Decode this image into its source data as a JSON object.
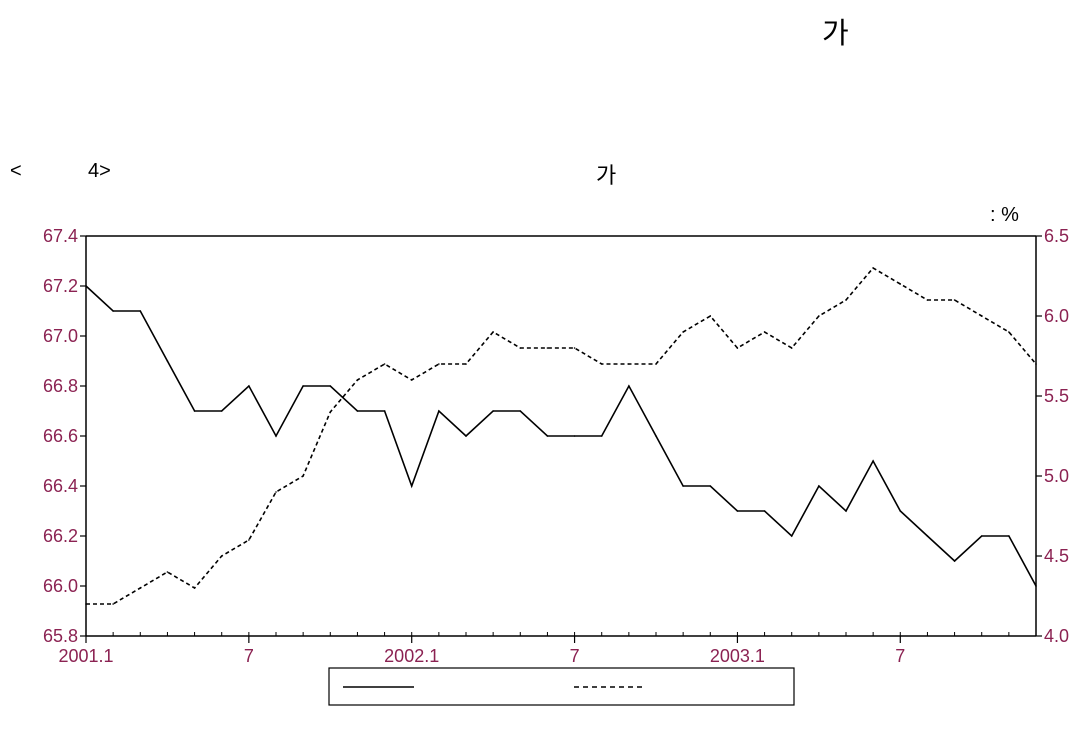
{
  "heading": "가",
  "caption": {
    "left": "<",
    "num": "4>",
    "mid": "가"
  },
  "unit": ": %",
  "colors": {
    "tick_label": "#8b2252",
    "line": "#000000"
  },
  "chart_data": {
    "type": "line",
    "x": [
      "2001.1",
      "2001.2",
      "2001.3",
      "2001.4",
      "2001.5",
      "2001.6",
      "2001.7",
      "2001.8",
      "2001.9",
      "2001.10",
      "2001.11",
      "2001.12",
      "2002.1",
      "2002.2",
      "2002.3",
      "2002.4",
      "2002.5",
      "2002.6",
      "2002.7",
      "2002.8",
      "2002.9",
      "2002.10",
      "2002.11",
      "2002.12",
      "2003.1",
      "2003.2",
      "2003.3",
      "2003.4",
      "2003.5",
      "2003.6",
      "2003.7",
      "2003.8",
      "2003.9",
      "2003.10",
      "2003.11",
      "2003.12"
    ],
    "x_tick_labels": [
      "2001.1",
      "7",
      "2002.1",
      "7",
      "2003.1",
      "7"
    ],
    "x_tick_index": [
      0,
      6,
      12,
      18,
      24,
      30
    ],
    "series": [
      {
        "axis": "left",
        "style": "solid",
        "values": [
          67.2,
          67.1,
          67.1,
          66.9,
          66.7,
          66.7,
          66.8,
          66.6,
          66.8,
          66.8,
          66.7,
          66.7,
          66.4,
          66.7,
          66.6,
          66.7,
          66.7,
          66.6,
          66.6,
          66.6,
          66.8,
          66.6,
          66.4,
          66.4,
          66.3,
          66.3,
          66.2,
          66.4,
          66.3,
          66.5,
          66.3,
          66.2,
          66.1,
          66.2,
          66.2,
          66.0
        ]
      },
      {
        "axis": "right",
        "style": "dashed",
        "values": [
          4.2,
          4.2,
          4.3,
          4.4,
          4.3,
          4.5,
          4.6,
          4.9,
          5.0,
          5.4,
          5.6,
          5.7,
          5.6,
          5.7,
          5.7,
          5.9,
          5.8,
          5.8,
          5.8,
          5.7,
          5.7,
          5.7,
          5.9,
          6.0,
          5.8,
          5.9,
          5.8,
          6.0,
          6.1,
          6.3,
          6.2,
          6.1,
          6.1,
          6.0,
          5.9,
          5.7
        ]
      }
    ],
    "left_axis": {
      "ylim": [
        65.8,
        67.4
      ],
      "ticks": [
        "65.8",
        "66.0",
        "66.2",
        "66.4",
        "66.6",
        "66.8",
        "67.0",
        "67.2",
        "67.4"
      ]
    },
    "right_axis": {
      "ylim": [
        4.0,
        6.5
      ],
      "ticks": [
        "4.0",
        "4.5",
        "5.0",
        "5.5",
        "6.0",
        "6.5"
      ]
    },
    "legend": {
      "position": "bottom-center"
    }
  }
}
